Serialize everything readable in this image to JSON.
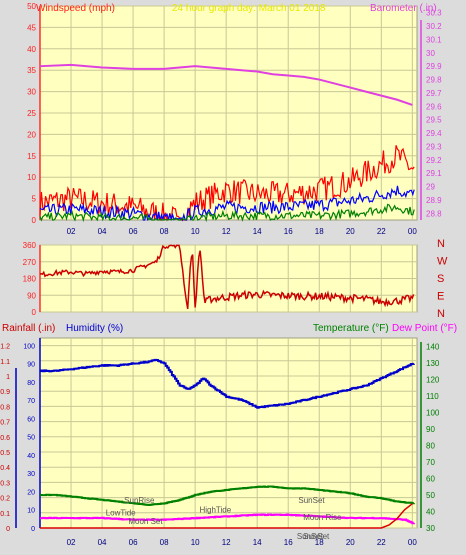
{
  "colors": {
    "background": "#dcdcdc",
    "plot_bg": "#ffffc0",
    "grid": "#c8c896",
    "wind": "#ff0000",
    "wind_avg": "#0000ff",
    "wind_min": "#008000",
    "barometer": "#e040e0",
    "direction": "#cc0000",
    "humidity": "#0000cc",
    "temperature": "#008000",
    "dewpoint": "#ff00ff",
    "rain": "#dd0000",
    "axis_left_pink": "#ff3030"
  },
  "chart_data": [
    {
      "type": "line",
      "id": "wind_baro",
      "left_label": "Windspeed (mph)",
      "title": "24 hour graph day:  March 01 2018",
      "right_label": "Barometer (.in)",
      "x_ticks": [
        "02",
        "04",
        "06",
        "08",
        "10",
        "12",
        "14",
        "16",
        "18",
        "20",
        "22",
        "00"
      ],
      "y_left_ticks": [
        0,
        5,
        10,
        15,
        20,
        25,
        30,
        35,
        40,
        45,
        50
      ],
      "ylim_left": [
        0,
        50
      ],
      "y_right_ticks": [
        28.8,
        28.9,
        29,
        29.1,
        29.2,
        29.3,
        29.4,
        29.5,
        29.6,
        29.7,
        29.8,
        29.9,
        30,
        30.1,
        30.2,
        30.3
      ],
      "ylim_right": [
        28.75,
        30.35
      ],
      "series": [
        {
          "key": "barometer",
          "x": [
            0,
            2,
            4,
            6,
            8,
            9,
            10,
            11,
            12,
            13,
            14,
            15,
            16,
            17,
            18,
            19,
            20,
            21,
            22,
            23,
            24
          ],
          "values": [
            29.9,
            29.91,
            29.89,
            29.88,
            29.88,
            29.89,
            29.9,
            29.89,
            29.88,
            29.87,
            29.86,
            29.84,
            29.83,
            29.82,
            29.8,
            29.77,
            29.74,
            29.71,
            29.68,
            29.65,
            29.61
          ]
        },
        {
          "key": "wind",
          "x": [
            0,
            2,
            4,
            6,
            7,
            8,
            9,
            10,
            12,
            14,
            16,
            18,
            20,
            21,
            22,
            23,
            24
          ],
          "values": [
            4,
            5,
            4,
            3,
            2,
            1,
            0,
            4,
            7,
            6,
            6,
            7,
            9,
            11,
            13,
            15,
            12
          ]
        },
        {
          "key": "wind_avg",
          "x": [
            0,
            2,
            4,
            6,
            7,
            8,
            9,
            10,
            12,
            14,
            16,
            18,
            20,
            21,
            22,
            23,
            24
          ],
          "values": [
            2,
            2.5,
            2,
            1.5,
            1,
            0.5,
            0,
            2,
            3,
            3,
            3,
            3.5,
            4.5,
            5,
            6,
            7,
            6
          ]
        },
        {
          "key": "wind_min",
          "x": [
            0,
            2,
            4,
            6,
            7,
            8,
            9,
            10,
            12,
            14,
            16,
            18,
            20,
            21,
            22,
            23,
            24
          ],
          "values": [
            0.5,
            1,
            0.5,
            0.5,
            0.3,
            0,
            0,
            0.5,
            1,
            1,
            1,
            1,
            1.5,
            2,
            2.5,
            3,
            2
          ]
        }
      ]
    },
    {
      "type": "scatter",
      "id": "direction",
      "x_ticks": [
        "02",
        "04",
        "06",
        "08",
        "10",
        "12",
        "14",
        "16",
        "18",
        "20",
        "22",
        "00"
      ],
      "y_ticks": [
        0,
        90,
        180,
        270,
        360
      ],
      "ylim": [
        0,
        360
      ],
      "compass": [
        "N",
        "W",
        "S",
        "E",
        "N"
      ],
      "series": [
        {
          "key": "direction",
          "x": [
            0,
            1,
            2,
            3,
            4,
            5,
            6,
            6.5,
            7,
            7.5,
            8,
            9,
            9.5,
            9.8,
            10,
            10.3,
            10.6,
            11,
            12,
            13,
            14,
            15,
            16,
            17,
            18,
            19,
            20,
            21,
            22,
            23,
            24
          ],
          "values": [
            200,
            210,
            215,
            205,
            220,
            215,
            225,
            240,
            255,
            270,
            355,
            360,
            10,
            360,
            20,
            360,
            50,
            70,
            80,
            90,
            95,
            90,
            88,
            85,
            85,
            80,
            75,
            70,
            55,
            60,
            75
          ]
        }
      ]
    },
    {
      "type": "line",
      "id": "humidity_temp",
      "labels": {
        "rain": "Rainfall (.in)",
        "humidity": "Humidity (%)",
        "temperature": "Temperature (°F)",
        "dewpoint": "Dew Point (°F)"
      },
      "x_ticks": [
        "02",
        "04",
        "06",
        "08",
        "10",
        "12",
        "14",
        "16",
        "18",
        "20",
        "22",
        "00"
      ],
      "y_rain_ticks": [
        0,
        0.1,
        0.2,
        0.3,
        0.4,
        0.5,
        0.6,
        0.7,
        0.8,
        0.9,
        1,
        1.1,
        1.2
      ],
      "y_hum_ticks": [
        0,
        10,
        20,
        30,
        40,
        50,
        60,
        70,
        80,
        90,
        100
      ],
      "y_temp_ticks": [
        30,
        40,
        50,
        60,
        70,
        80,
        90,
        100,
        110,
        120,
        130,
        140
      ],
      "ylim_rain": [
        0,
        1.25
      ],
      "ylim_hum": [
        0,
        104
      ],
      "ylim_temp": [
        30,
        145
      ],
      "annotations": [
        {
          "text": "SunRise",
          "x": 6.4,
          "y_frac": 0.11
        },
        {
          "text": "LowTide",
          "x": 5.2,
          "y_frac": 0.045
        },
        {
          "text": "Moon Set",
          "x": 6.8,
          "y_frac": 0.0
        },
        {
          "text": "HighTide",
          "x": 11.3,
          "y_frac": 0.06
        },
        {
          "text": "SunSet",
          "x": 17.5,
          "y_frac": 0.11
        },
        {
          "text": "Moon Rise",
          "x": 18.2,
          "y_frac": 0.02
        },
        {
          "text": "SunSet",
          "x": 17.4,
          "y_frac": -0.08
        },
        {
          "text": "SunSet",
          "x": 17.8,
          "y_frac": -0.08
        }
      ],
      "series": [
        {
          "key": "humidity",
          "x": [
            0,
            1,
            2,
            3,
            4,
            5,
            6,
            7,
            7.5,
            8,
            8.5,
            9,
            9.5,
            10,
            10.5,
            11,
            12,
            13,
            14,
            15,
            16,
            17,
            18,
            19,
            20,
            21,
            22,
            23,
            24
          ],
          "values": [
            86,
            86,
            87,
            88,
            89,
            89,
            90,
            91,
            92,
            90,
            84,
            78,
            76,
            78,
            82,
            78,
            72,
            70,
            66,
            67,
            68,
            70,
            72,
            74,
            76,
            78,
            82,
            86,
            90
          ]
        },
        {
          "key": "temperature",
          "x": [
            0,
            1,
            2,
            3,
            4,
            5,
            6,
            7,
            8,
            9,
            10,
            11,
            12,
            13,
            14,
            15,
            16,
            17,
            18,
            19,
            20,
            21,
            22,
            23,
            24
          ],
          "values": [
            50,
            50,
            49,
            48,
            47,
            46,
            45,
            44,
            45,
            47,
            50,
            52,
            53,
            54,
            55,
            55,
            54,
            54,
            53,
            52,
            51,
            49,
            48,
            46,
            45
          ]
        },
        {
          "key": "dewpoint",
          "x": [
            0,
            2,
            4,
            6,
            8,
            10,
            12,
            14,
            16,
            18,
            20,
            22,
            23.5,
            24
          ],
          "values": [
            36,
            36,
            36,
            35,
            35,
            36,
            37,
            38,
            38,
            37,
            36,
            36,
            35,
            33
          ]
        },
        {
          "key": "rain",
          "x": [
            0,
            22,
            22.5,
            23,
            23.5,
            24
          ],
          "values": [
            0,
            0,
            0.02,
            0.06,
            0.12,
            0.16
          ]
        }
      ]
    }
  ]
}
